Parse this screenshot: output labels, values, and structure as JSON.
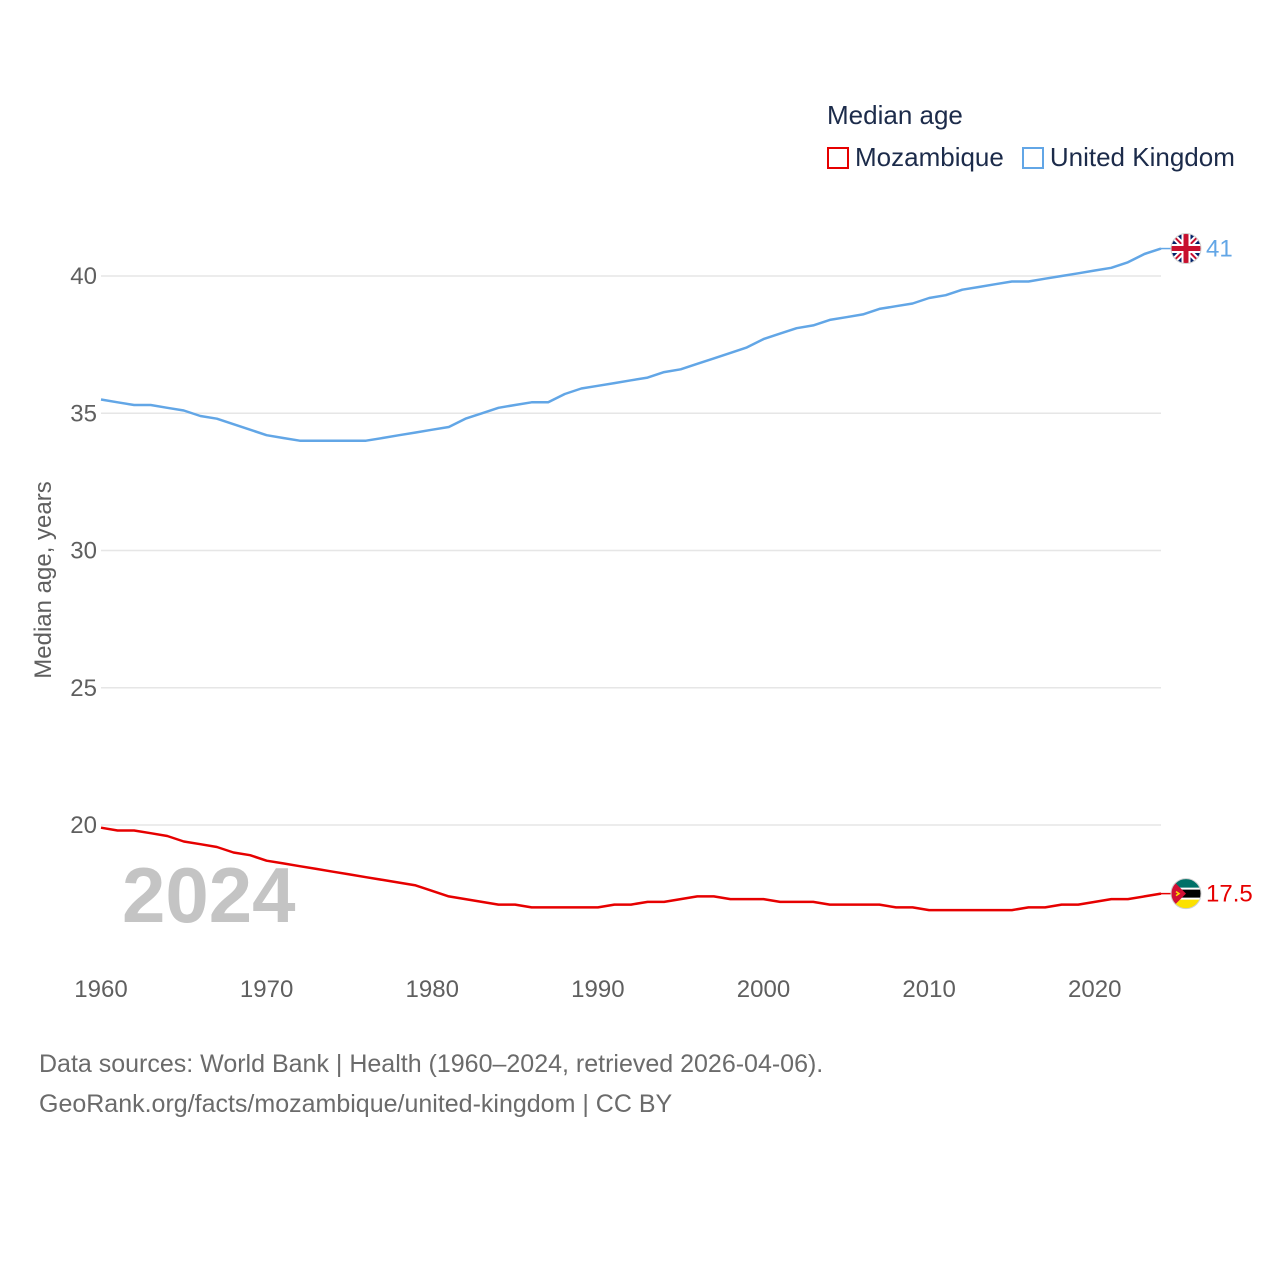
{
  "legend": {
    "title": "Median age",
    "items": [
      {
        "label": "Mozambique",
        "color": "#e60000"
      },
      {
        "label": "United Kingdom",
        "color": "#62a6e6"
      }
    ]
  },
  "source": {
    "line1": "Data sources: World Bank | Health (1960–2024, retrieved 2026-04-06).",
    "line2": "GeoRank.org/facts/mozambique/united-kingdom | CC BY"
  },
  "chart_data": {
    "type": "line",
    "title": "Median age",
    "xlabel": "",
    "ylabel": "Median age, years",
    "current_year_label": "2024",
    "xlim": [
      1960,
      2024
    ],
    "ylim": [
      15.5,
      42
    ],
    "xticks": [
      1960,
      1970,
      1980,
      1990,
      2000,
      2010,
      2020
    ],
    "yticks": [
      20,
      25,
      30,
      35,
      40
    ],
    "grid": true,
    "legend_position": "top-right",
    "x": [
      1960,
      1961,
      1962,
      1963,
      1964,
      1965,
      1966,
      1967,
      1968,
      1969,
      1970,
      1971,
      1972,
      1973,
      1974,
      1975,
      1976,
      1977,
      1978,
      1979,
      1980,
      1981,
      1982,
      1983,
      1984,
      1985,
      1986,
      1987,
      1988,
      1989,
      1990,
      1991,
      1992,
      1993,
      1994,
      1995,
      1996,
      1997,
      1998,
      1999,
      2000,
      2001,
      2002,
      2003,
      2004,
      2005,
      2006,
      2007,
      2008,
      2009,
      2010,
      2011,
      2012,
      2013,
      2014,
      2015,
      2016,
      2017,
      2018,
      2019,
      2020,
      2021,
      2022,
      2023,
      2024
    ],
    "series": [
      {
        "name": "Mozambique",
        "color": "#e60000",
        "end_label": "17.5",
        "icon": "mozambique-flag-icon",
        "values": [
          19.9,
          19.8,
          19.8,
          19.7,
          19.6,
          19.4,
          19.3,
          19.2,
          19.0,
          18.9,
          18.7,
          18.6,
          18.5,
          18.4,
          18.3,
          18.2,
          18.1,
          18.0,
          17.9,
          17.8,
          17.6,
          17.4,
          17.3,
          17.2,
          17.1,
          17.1,
          17.0,
          17.0,
          17.0,
          17.0,
          17.0,
          17.1,
          17.1,
          17.2,
          17.2,
          17.3,
          17.4,
          17.4,
          17.3,
          17.3,
          17.3,
          17.2,
          17.2,
          17.2,
          17.1,
          17.1,
          17.1,
          17.1,
          17.0,
          17.0,
          16.9,
          16.9,
          16.9,
          16.9,
          16.9,
          16.9,
          17.0,
          17.0,
          17.1,
          17.1,
          17.2,
          17.3,
          17.3,
          17.4,
          17.5
        ]
      },
      {
        "name": "United Kingdom",
        "color": "#62a6e6",
        "end_label": "41",
        "icon": "united-kingdom-flag-icon",
        "values": [
          35.5,
          35.4,
          35.3,
          35.3,
          35.2,
          35.1,
          34.9,
          34.8,
          34.6,
          34.4,
          34.2,
          34.1,
          34.0,
          34.0,
          34.0,
          34.0,
          34.0,
          34.1,
          34.2,
          34.3,
          34.4,
          34.5,
          34.8,
          35.0,
          35.2,
          35.3,
          35.4,
          35.4,
          35.7,
          35.9,
          36.0,
          36.1,
          36.2,
          36.3,
          36.5,
          36.6,
          36.8,
          37.0,
          37.2,
          37.4,
          37.7,
          37.9,
          38.1,
          38.2,
          38.4,
          38.5,
          38.6,
          38.8,
          38.9,
          39.0,
          39.2,
          39.3,
          39.5,
          39.6,
          39.7,
          39.8,
          39.8,
          39.9,
          40.0,
          40.1,
          40.2,
          40.3,
          40.5,
          40.8,
          41.0
        ]
      }
    ]
  }
}
